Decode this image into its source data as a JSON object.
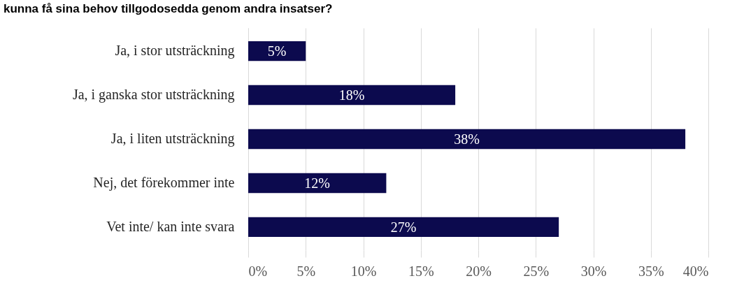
{
  "chart_data": {
    "type": "bar",
    "orientation": "horizontal",
    "title": "kunna få sina behov tillgodosedda genom andra insatser?",
    "categories": [
      "Ja, i stor utsträckning",
      "Ja, i ganska stor utsträckning",
      "Ja, i liten utsträckning",
      "Nej, det förekommer inte",
      "Vet inte/ kan inte svara"
    ],
    "values": [
      5,
      18,
      38,
      12,
      27
    ],
    "value_labels": [
      "5%",
      "18%",
      "38%",
      "12%",
      "27%"
    ],
    "color": "#0c0a4e",
    "xlim": [
      0,
      40
    ],
    "xticks": [
      {
        "value": 0,
        "label": "0%"
      },
      {
        "value": 5,
        "label": "5%"
      },
      {
        "value": 10,
        "label": "10%"
      },
      {
        "value": 15,
        "label": "15%"
      },
      {
        "value": 20,
        "label": "20%"
      },
      {
        "value": 25,
        "label": "25%"
      },
      {
        "value": 30,
        "label": "30%"
      },
      {
        "value": 35,
        "label": "35%"
      },
      {
        "value": 40,
        "label": "40%"
      }
    ],
    "grid": "x"
  }
}
